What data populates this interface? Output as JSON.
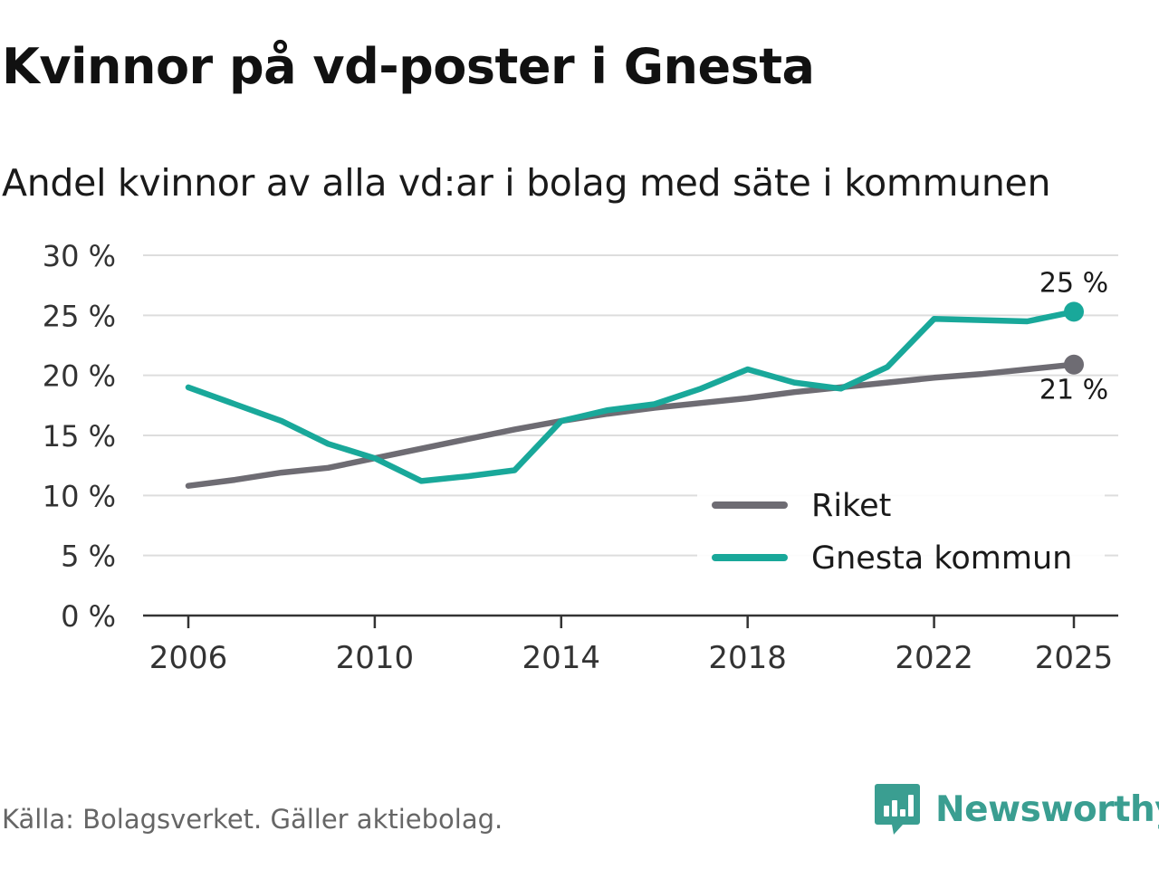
{
  "title": "Kvinnor på vd-poster i Gnesta",
  "subtitle": "Andel kvinnor av alla vd:ar i bolag med säte i kommunen",
  "source": "Källa: Bolagsverket. Gäller aktiebolag.",
  "brand": "Newsworthy",
  "colors": {
    "riket": "#6e6c73",
    "gnesta": "#19a89a",
    "grid": "#dddddd",
    "axis": "#333333",
    "brand": "#3a9e91"
  },
  "chart_data": {
    "type": "line",
    "title": "Kvinnor på vd-poster i Gnesta",
    "subtitle": "Andel kvinnor av alla vd:ar i bolag med säte i kommunen",
    "xlabel": "",
    "ylabel": "",
    "x": [
      2006,
      2007,
      2008,
      2009,
      2010,
      2011,
      2012,
      2013,
      2014,
      2015,
      2016,
      2017,
      2018,
      2019,
      2020,
      2021,
      2022,
      2023,
      2024,
      2025
    ],
    "x_ticks": [
      2006,
      2010,
      2014,
      2018,
      2022,
      2025
    ],
    "x_range": [
      2005,
      2026
    ],
    "ylim": [
      0,
      30
    ],
    "y_ticks": [
      {
        "value": 0,
        "label": "0 %"
      },
      {
        "value": 5,
        "label": "5 %"
      },
      {
        "value": 10,
        "label": "10 %"
      },
      {
        "value": 15,
        "label": "15 %"
      },
      {
        "value": 20,
        "label": "20 %"
      },
      {
        "value": 25,
        "label": "25 %"
      },
      {
        "value": 30,
        "label": "30 %"
      }
    ],
    "grid": true,
    "legend_position": "bottom-right",
    "series": [
      {
        "name": "Riket",
        "key": "riket",
        "values": [
          10.8,
          11.3,
          11.9,
          12.3,
          13.1,
          13.9,
          14.7,
          15.5,
          16.2,
          16.8,
          17.3,
          17.7,
          18.1,
          18.6,
          19.0,
          19.4,
          19.8,
          20.1,
          20.5,
          20.9
        ],
        "end_label": "21 %"
      },
      {
        "name": "Gnesta kommun",
        "key": "gnesta",
        "values": [
          19.0,
          17.6,
          16.2,
          14.3,
          13.1,
          11.2,
          11.6,
          12.1,
          16.2,
          17.1,
          17.6,
          18.9,
          20.5,
          19.4,
          18.9,
          20.7,
          24.7,
          24.6,
          24.5,
          25.3
        ],
        "end_label": "25 %"
      }
    ]
  }
}
